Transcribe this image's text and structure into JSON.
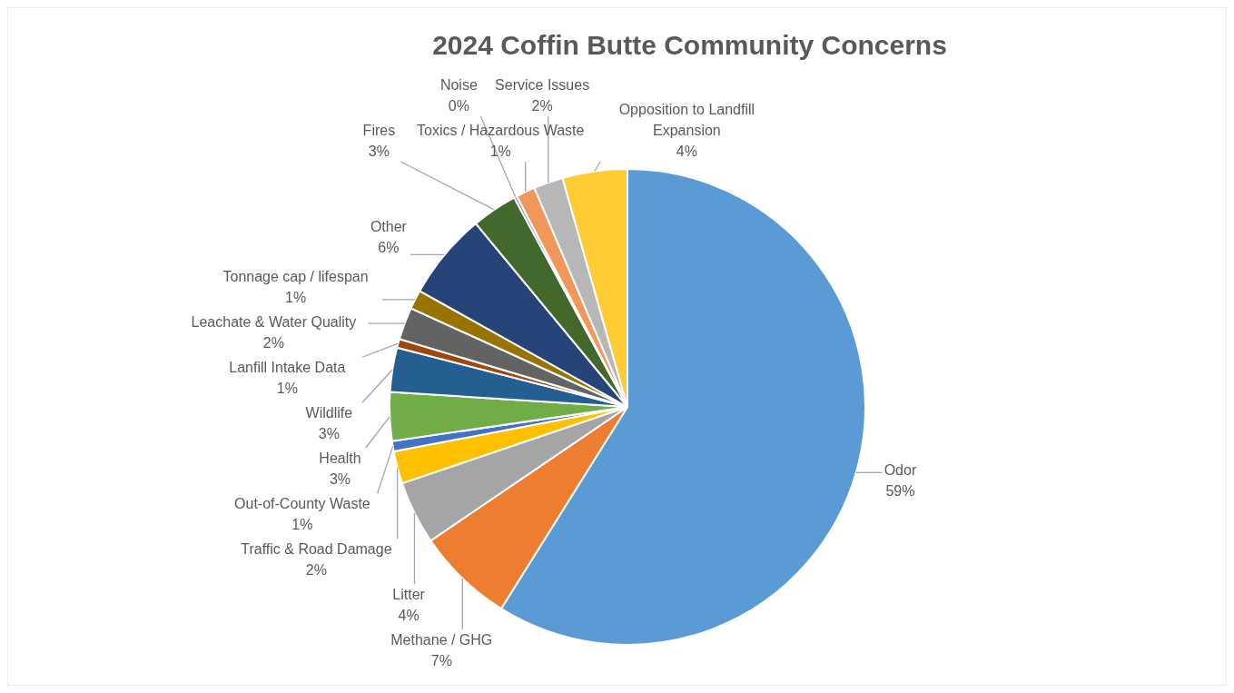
{
  "chart_data": {
    "type": "pie",
    "title": "2024 Coffin Butte Community Concerns",
    "categories": [
      "Odor",
      "Methane / GHG",
      "Litter",
      "Traffic & Road Damage",
      "Out-of-County Waste",
      "Health",
      "Wildlife",
      "Lanfill Intake Data",
      "Leachate & Water Quality",
      "Tonnage cap / lifespan",
      "Other",
      "Fires",
      "Noise",
      "Toxics / Hazardous Waste",
      "Service Issues",
      "Opposition to Landfill Expansion"
    ],
    "values": [
      58.9,
      6.6,
      4.3,
      2.2,
      0.7,
      3.3,
      3.0,
      0.6,
      2.2,
      1.3,
      5.9,
      3.1,
      0.2,
      1.3,
      2.0,
      4.4
    ],
    "value_labels": [
      "59%",
      "7%",
      "4%",
      "2%",
      "1%",
      "3%",
      "3%",
      "1%",
      "2%",
      "1%",
      "6%",
      "3%",
      "0%",
      "1%",
      "2%",
      "4%"
    ],
    "colors": [
      "#5b9bd5",
      "#ed7d31",
      "#a5a5a5",
      "#ffc000",
      "#4472c4",
      "#70ad47",
      "#255e91",
      "#9e480e",
      "#636363",
      "#997300",
      "#264478",
      "#43682b",
      "#698ed0",
      "#f1975a",
      "#b7b7b7",
      "#ffcd33"
    ],
    "legend": false
  }
}
